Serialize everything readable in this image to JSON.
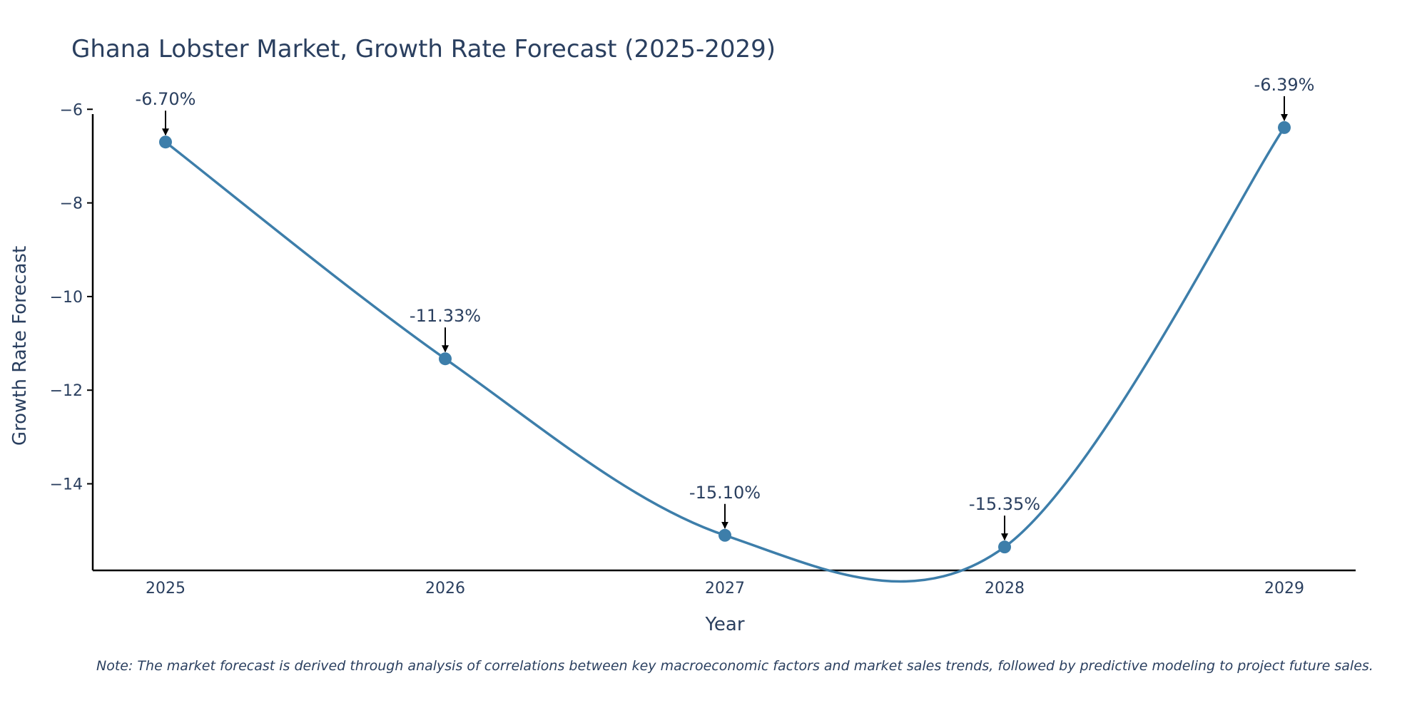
{
  "chart_data": {
    "type": "line",
    "title": "Ghana Lobster Market, Growth Rate Forecast (2025-2029)",
    "xlabel": "Year",
    "ylabel": "Growth Rate Forecast",
    "categories": [
      "2025",
      "2026",
      "2027",
      "2028",
      "2029"
    ],
    "series": [
      {
        "name": "Growth Rate Forecast",
        "values": [
          -6.7,
          -11.33,
          -15.1,
          -15.35,
          -6.39
        ]
      }
    ],
    "data_labels": [
      "-6.70%",
      "-11.33%",
      "-15.10%",
      "-15.35%",
      "-6.39%"
    ],
    "yticks": [
      -6,
      -8,
      -10,
      -12,
      -14
    ],
    "ytick_labels": [
      "−6",
      "−8",
      "−10",
      "−12",
      "−14"
    ],
    "ylim": [
      -15.85,
      -5.95
    ],
    "line_shape": "spline",
    "grid": false,
    "colors": {
      "line": "#3d7eaa",
      "marker": "#3d7eaa",
      "arrow": "#000000",
      "axis": "#000000"
    },
    "note": "Note: The market forecast is derived through analysis of correlations between key macroeconomic factors and market sales trends, followed by predictive modeling to project future sales."
  }
}
